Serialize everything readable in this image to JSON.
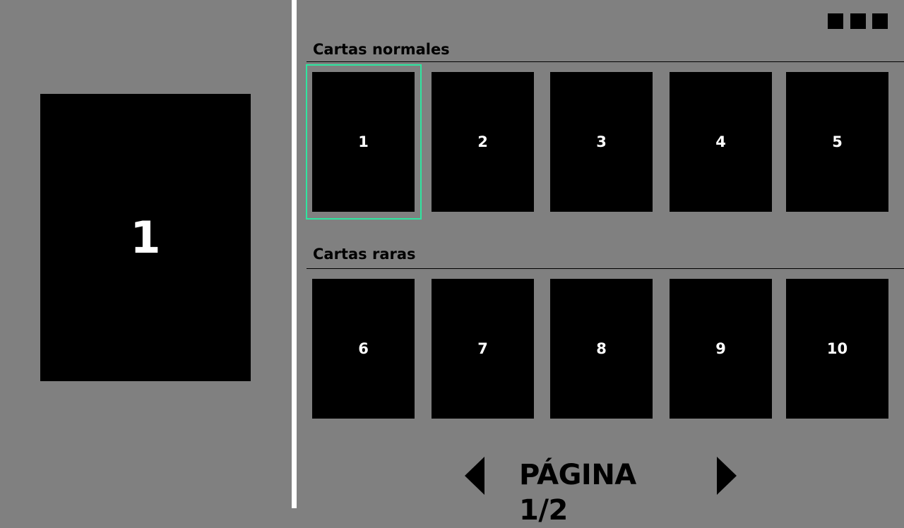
{
  "preview": {
    "label": "1"
  },
  "sections": [
    {
      "title": "Cartas normales",
      "cards": [
        "1",
        "2",
        "3",
        "4",
        "5"
      ]
    },
    {
      "title": "Cartas raras",
      "cards": [
        "6",
        "7",
        "8",
        "9",
        "10"
      ]
    }
  ],
  "selected_card": "1",
  "pager": {
    "label": "PÁGINA 1/2",
    "prev_icon": "triangle-left-icon",
    "next_icon": "triangle-right-icon"
  },
  "window_controls": [
    "square-icon",
    "square-icon",
    "square-icon"
  ],
  "colors": {
    "background": "#808080",
    "card": "#000000",
    "card_text": "#ffffff",
    "selection": "#2ee6a0",
    "divider": "#ffffff"
  }
}
